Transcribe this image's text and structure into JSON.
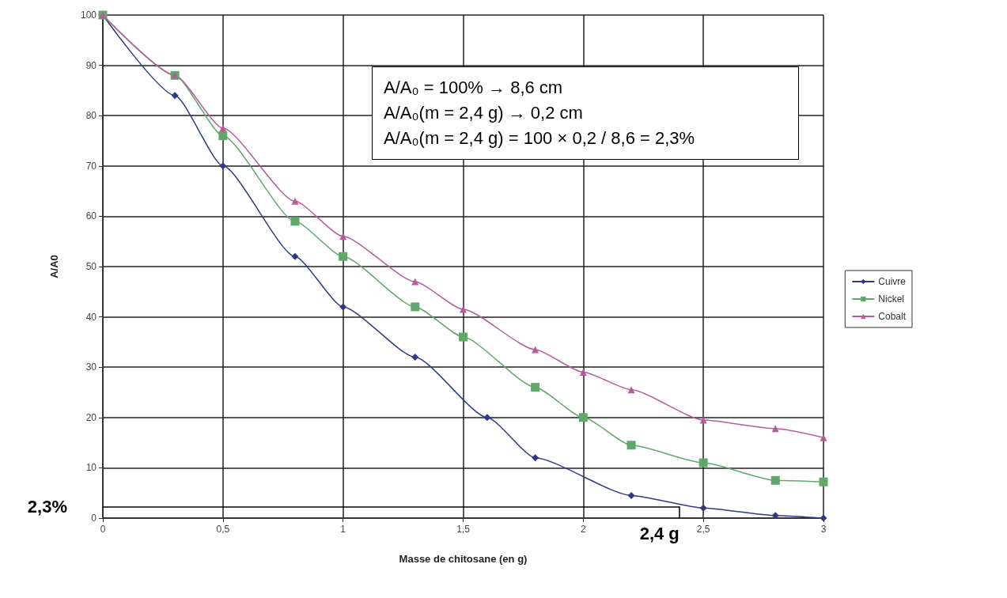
{
  "chart_data": {
    "type": "line",
    "xlabel": "Masse de chitosane (en g)",
    "ylabel": "A/A0",
    "x": [
      0,
      0.3,
      0.5,
      0.8,
      1,
      1.3,
      1.5,
      1.8,
      2,
      2.2,
      2.5,
      2.8,
      3
    ],
    "series": [
      {
        "name": "Cuivre",
        "color": "#2e3a87",
        "marker": "diamond",
        "x": [
          0,
          0.3,
          0.5,
          0.8,
          1,
          1.3,
          1.6,
          1.8,
          2.2,
          2.5,
          2.8,
          3
        ],
        "values": [
          100,
          84,
          70,
          52,
          42,
          32,
          20,
          12,
          4.5,
          2,
          0.5,
          0
        ]
      },
      {
        "name": "Nickel",
        "color": "#5fa86a",
        "marker": "square",
        "values": [
          100,
          88,
          76,
          59,
          52,
          42,
          36,
          26,
          20,
          14.5,
          11,
          7.5,
          7.2
        ]
      },
      {
        "name": "Cobalt",
        "color": "#b35d9b",
        "marker": "triangle",
        "values": [
          100,
          88,
          77.5,
          63,
          56,
          47,
          41.5,
          33.5,
          29,
          25.5,
          19.5,
          17.8,
          16
        ]
      }
    ],
    "xlim": [
      0,
      3
    ],
    "xticks": [
      0,
      {
        "value": 0.5,
        "label": "0,5"
      },
      1,
      {
        "value": 1.5,
        "label": "1,5"
      },
      2,
      {
        "value": 2.5,
        "label": "2,5"
      },
      3
    ],
    "ylim": [
      0,
      100
    ],
    "yticks": [
      0,
      10,
      20,
      30,
      40,
      50,
      60,
      70,
      80,
      90,
      100
    ],
    "grid": true,
    "legend": "right",
    "ref_lines": [
      {
        "axis": "y",
        "value": 2.3,
        "label": "2,3%",
        "color": "#000000"
      },
      {
        "axis": "x",
        "value": 2.4,
        "label": "2,4 g",
        "color": "#000000"
      }
    ],
    "annotations": [
      "A/A₀ = 100% → 8,6 cm",
      "A/A₀(m = 2,4 g) → 0,2 cm",
      "A/A₀(m = 2,4 g) = 100 × 0,2 / 8,6 = 2,3%"
    ]
  }
}
